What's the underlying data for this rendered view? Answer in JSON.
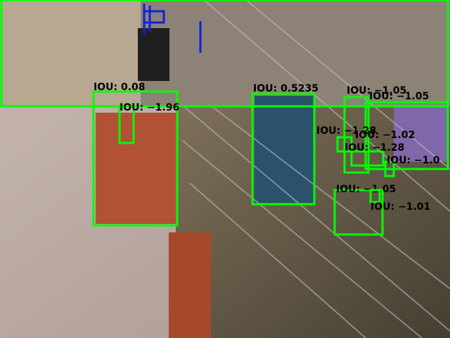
{
  "detections": [
    {
      "label": "IOU: 0.08"
    },
    {
      "label": "IOU: −1.96"
    },
    {
      "label": "IOU: 0.5235"
    },
    {
      "label": "IOU: −1.05"
    },
    {
      "label": "IOU: −1.05"
    },
    {
      "label": "IOU: −1.28"
    },
    {
      "label": "IOU: −1.02"
    },
    {
      "label": "IOU: −1.28"
    },
    {
      "label": "IOU: −1.0"
    },
    {
      "label": "IOU: −1.05"
    },
    {
      "label": "IOU: −1.01"
    }
  ]
}
